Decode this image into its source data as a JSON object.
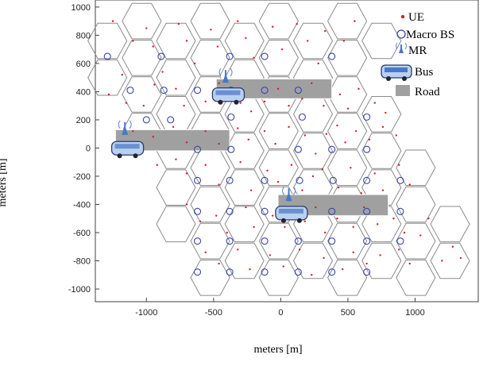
{
  "chart_data": {
    "type": "scatter",
    "title": "",
    "xlabel": "meters [m]",
    "ylabel": "meters [m]",
    "xlim": [
      -1380,
      1470
    ],
    "ylim": [
      -1090,
      1050
    ],
    "xticks": [
      -1000,
      -500,
      0,
      500,
      1000
    ],
    "yticks": [
      1000,
      800,
      600,
      400,
      200,
      0,
      -200,
      -400,
      -600,
      -800,
      -1000
    ],
    "grid": false,
    "legend_position": "top-right",
    "legend": [
      "UE",
      "Macro BS",
      "MR",
      "Bus",
      "Road"
    ],
    "colors": {
      "ue": "#cc2222",
      "macro_bs": "#3a44aa",
      "hex": "#8a8a8a",
      "road": "#a0a0a0",
      "mr": "#4a78c8",
      "bus": "#6a90d0"
    },
    "hex_radius": 145,
    "macro_bs": [
      [
        -1290,
        650
      ],
      [
        -890,
        650
      ],
      [
        -380,
        650
      ],
      [
        -120,
        650
      ],
      [
        380,
        650
      ],
      [
        -1120,
        410
      ],
      [
        -870,
        410
      ],
      [
        -620,
        410
      ],
      [
        -370,
        410
      ],
      [
        -120,
        410
      ],
      [
        130,
        410
      ],
      [
        -1000,
        200
      ],
      [
        -820,
        200
      ],
      [
        -370,
        220
      ],
      [
        160,
        220
      ],
      [
        640,
        220
      ],
      [
        -620,
        -10
      ],
      [
        -370,
        -10
      ],
      [
        130,
        -10
      ],
      [
        380,
        -10
      ],
      [
        640,
        -10
      ],
      [
        -620,
        -230
      ],
      [
        -380,
        -230
      ],
      [
        -120,
        -230
      ],
      [
        140,
        -230
      ],
      [
        390,
        -230
      ],
      [
        640,
        -230
      ],
      [
        890,
        -230
      ],
      [
        -620,
        -450
      ],
      [
        -380,
        -450
      ],
      [
        -120,
        -450
      ],
      [
        130,
        -450
      ],
      [
        380,
        -450
      ],
      [
        640,
        -450
      ],
      [
        890,
        -450
      ],
      [
        -620,
        -660
      ],
      [
        -380,
        -660
      ],
      [
        -120,
        -660
      ],
      [
        130,
        -660
      ],
      [
        380,
        -660
      ],
      [
        640,
        -660
      ],
      [
        890,
        -660
      ],
      [
        -620,
        -880
      ],
      [
        -380,
        -880
      ],
      [
        -120,
        -880
      ],
      [
        130,
        -880
      ],
      [
        380,
        -880
      ],
      [
        640,
        -880
      ]
    ],
    "ue": [
      [
        -1250,
        900
      ],
      [
        -1100,
        760
      ],
      [
        -1180,
        520
      ],
      [
        -1000,
        850
      ],
      [
        -950,
        720
      ],
      [
        -880,
        540
      ],
      [
        -760,
        880
      ],
      [
        -700,
        760
      ],
      [
        -640,
        600
      ],
      [
        -520,
        840
      ],
      [
        -470,
        720
      ],
      [
        -320,
        900
      ],
      [
        -260,
        780
      ],
      [
        -200,
        640
      ],
      [
        -60,
        860
      ],
      [
        10,
        700
      ],
      [
        120,
        880
      ],
      [
        200,
        760
      ],
      [
        280,
        600
      ],
      [
        330,
        830
      ],
      [
        470,
        760
      ],
      [
        550,
        900
      ],
      [
        -1280,
        380
      ],
      [
        -1150,
        320
      ],
      [
        -1020,
        300
      ],
      [
        -940,
        450
      ],
      [
        -780,
        420
      ],
      [
        -720,
        300
      ],
      [
        -560,
        330
      ],
      [
        -460,
        460
      ],
      [
        -300,
        320
      ],
      [
        -220,
        260
      ],
      [
        -120,
        330
      ],
      [
        -20,
        420
      ],
      [
        60,
        300
      ],
      [
        160,
        350
      ],
      [
        230,
        460
      ],
      [
        320,
        300
      ],
      [
        440,
        380
      ],
      [
        500,
        280
      ],
      [
        580,
        420
      ],
      [
        700,
        320
      ],
      [
        780,
        250
      ],
      [
        -1100,
        120
      ],
      [
        -950,
        80
      ],
      [
        -800,
        150
      ],
      [
        -700,
        40
      ],
      [
        -560,
        120
      ],
      [
        -460,
        30
      ],
      [
        -320,
        140
      ],
      [
        -240,
        60
      ],
      [
        -120,
        120
      ],
      [
        -40,
        30
      ],
      [
        60,
        150
      ],
      [
        180,
        90
      ],
      [
        260,
        -40
      ],
      [
        340,
        100
      ],
      [
        420,
        160
      ],
      [
        480,
        40
      ],
      [
        560,
        120
      ],
      [
        660,
        60
      ],
      [
        760,
        150
      ],
      [
        860,
        90
      ],
      [
        -920,
        -120
      ],
      [
        -780,
        -80
      ],
      [
        -700,
        -180
      ],
      [
        -560,
        -120
      ],
      [
        -460,
        -260
      ],
      [
        -300,
        -100
      ],
      [
        -220,
        -300
      ],
      [
        -100,
        -160
      ],
      [
        -20,
        -240
      ],
      [
        80,
        -120
      ],
      [
        160,
        -300
      ],
      [
        240,
        -200
      ],
      [
        310,
        -150
      ],
      [
        430,
        -280
      ],
      [
        520,
        -140
      ],
      [
        600,
        -320
      ],
      [
        700,
        -180
      ],
      [
        760,
        -300
      ],
      [
        880,
        -120
      ],
      [
        960,
        -260
      ],
      [
        -700,
        -400
      ],
      [
        -600,
        -520
      ],
      [
        -480,
        -480
      ],
      [
        -400,
        -600
      ],
      [
        -260,
        -420
      ],
      [
        -200,
        -560
      ],
      [
        -60,
        -480
      ],
      [
        30,
        -560
      ],
      [
        180,
        -520
      ],
      [
        260,
        -420
      ],
      [
        330,
        -600
      ],
      [
        420,
        -500
      ],
      [
        540,
        -560
      ],
      [
        620,
        -420
      ],
      [
        720,
        -540
      ],
      [
        840,
        -500
      ],
      [
        920,
        -600
      ],
      [
        -560,
        -740
      ],
      [
        -460,
        -820
      ],
      [
        -320,
        -720
      ],
      [
        -230,
        -860
      ],
      [
        -80,
        -760
      ],
      [
        20,
        -840
      ],
      [
        140,
        -720
      ],
      [
        230,
        -900
      ],
      [
        320,
        -780
      ],
      [
        460,
        -860
      ],
      [
        540,
        -740
      ],
      [
        640,
        -820
      ],
      [
        740,
        -760
      ],
      [
        880,
        -720
      ],
      [
        960,
        -820
      ],
      [
        1040,
        -620
      ],
      [
        1200,
        -800
      ],
      [
        1280,
        -700
      ],
      [
        1340,
        -780
      ],
      [
        1100,
        -500
      ]
    ],
    "hex_centers": [
      [
        -1290,
        760
      ],
      [
        -1290,
        500
      ],
      [
        -1035,
        900
      ],
      [
        -1035,
        640
      ],
      [
        -780,
        760
      ],
      [
        -780,
        500
      ],
      [
        -525,
        900
      ],
      [
        -525,
        640
      ],
      [
        -270,
        760
      ],
      [
        -270,
        500
      ],
      [
        -15,
        900
      ],
      [
        -15,
        640
      ],
      [
        240,
        760
      ],
      [
        240,
        500
      ],
      [
        495,
        900
      ],
      [
        495,
        640
      ],
      [
        750,
        760
      ],
      [
        -1035,
        380
      ],
      [
        -1035,
        120
      ],
      [
        -780,
        240
      ],
      [
        -525,
        380
      ],
      [
        -525,
        120
      ],
      [
        -270,
        240
      ],
      [
        -15,
        380
      ],
      [
        -15,
        120
      ],
      [
        240,
        240
      ],
      [
        495,
        380
      ],
      [
        495,
        120
      ],
      [
        750,
        240
      ],
      [
        750,
        -20
      ],
      [
        -780,
        -20
      ],
      [
        -525,
        -140
      ],
      [
        -270,
        -20
      ],
      [
        -15,
        -140
      ],
      [
        240,
        -20
      ],
      [
        495,
        -140
      ],
      [
        750,
        -280
      ],
      [
        1005,
        -140
      ],
      [
        1005,
        -400
      ],
      [
        -780,
        -280
      ],
      [
        -525,
        -400
      ],
      [
        -270,
        -280
      ],
      [
        -15,
        -400
      ],
      [
        240,
        -280
      ],
      [
        495,
        -400
      ],
      [
        750,
        -540
      ],
      [
        1005,
        -660
      ],
      [
        1260,
        -540
      ],
      [
        1260,
        -800
      ],
      [
        -780,
        -540
      ],
      [
        -525,
        -660
      ],
      [
        -270,
        -540
      ],
      [
        -15,
        -660
      ],
      [
        240,
        -540
      ],
      [
        495,
        -660
      ],
      [
        750,
        -800
      ],
      [
        1005,
        -920
      ],
      [
        -525,
        -920
      ],
      [
        -270,
        -800
      ],
      [
        -15,
        -920
      ],
      [
        240,
        -800
      ],
      [
        495,
        -920
      ]
    ],
    "roads": [
      {
        "x": [
          -1230,
          -380
        ],
        "y": [
          -20,
          130
        ]
      },
      {
        "x": [
          -480,
          380
        ],
        "y": [
          350,
          490
        ]
      },
      {
        "x": [
          -20,
          800
        ],
        "y": [
          -480,
          -330
        ]
      }
    ],
    "buses": [
      {
        "mr": [
          -1160,
          150
        ],
        "bus": [
          -1140,
          -10
        ]
      },
      {
        "mr": [
          -410,
          520
        ],
        "bus": [
          -390,
          370
        ]
      },
      {
        "mr": [
          60,
          -320
        ],
        "bus": [
          80,
          -470
        ]
      }
    ]
  }
}
